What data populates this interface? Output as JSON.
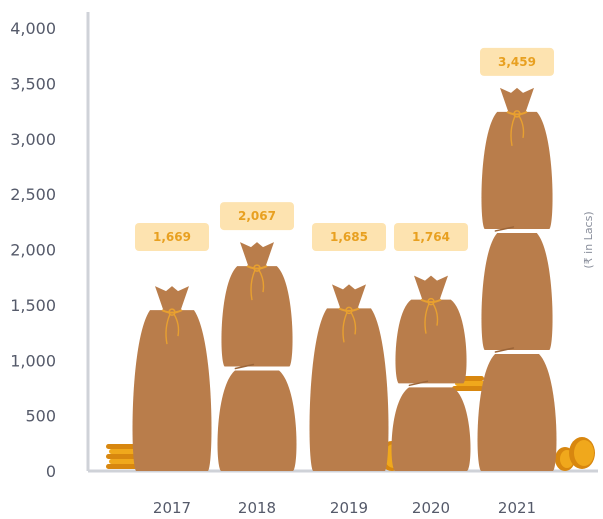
{
  "chart_data": {
    "type": "bar",
    "categories": [
      "2017",
      "2018",
      "2019",
      "2020",
      "2021"
    ],
    "values": [
      1669,
      2067,
      1685,
      1764,
      3459
    ],
    "value_labels": [
      "1,669",
      "2,067",
      "1,685",
      "1,764",
      "3,459"
    ],
    "ylim": [
      0,
      4000
    ],
    "yticks": [
      0,
      500,
      1000,
      1500,
      2000,
      2500,
      3000,
      3500,
      4000
    ],
    "ytick_labels": [
      "0",
      "500",
      "1,000",
      "1,500",
      "2,000",
      "2,500",
      "3,000",
      "3,500",
      "4,000"
    ],
    "unit_label": "(₹ in Lacs)",
    "grid": false,
    "colors": {
      "sack": "#b97d4b",
      "sack_shadow": "#9c6538",
      "tie": "#e8a030",
      "coin": "#f0a81c",
      "coin_dark": "#d8870f",
      "label_bg": "#fde3b0",
      "label_text": "#e8a020",
      "axis": "#cfd2d8"
    }
  }
}
